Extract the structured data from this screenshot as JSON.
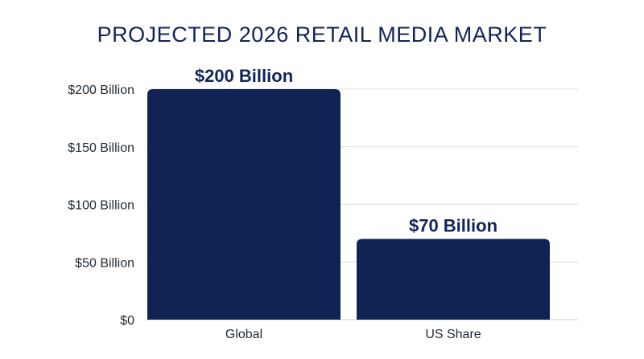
{
  "chart_data": {
    "type": "bar",
    "title": "PROJECTED 2026 RETAIL MEDIA MARKET",
    "categories": [
      "Global",
      "US Share"
    ],
    "values": [
      200,
      70
    ],
    "data_labels": [
      "$200 Billion",
      "$70 Billion"
    ],
    "y_ticks": [
      0,
      50,
      100,
      150,
      200
    ],
    "y_tick_labels": [
      "$0",
      "$50 Billion",
      "$100 Billion",
      "$150 Billion",
      "$200 Billion"
    ],
    "ylim": [
      0,
      200
    ],
    "grid": true,
    "xlabel": "",
    "ylabel": "",
    "colors": {
      "bar": "#112255",
      "title": "#12245a",
      "grid": "#d9dde3",
      "axis": "#c9ced6"
    }
  }
}
